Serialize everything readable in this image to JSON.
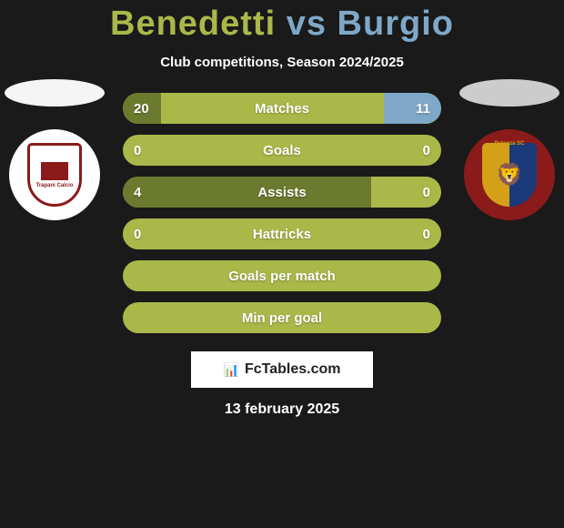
{
  "title": {
    "player1": "Benedetti",
    "vs": "vs",
    "player2": "Burgio"
  },
  "subtitle": "Club competitions, Season 2024/2025",
  "teams": {
    "left": {
      "name": "Trapani Calcio",
      "logo_bg": "#ffffff",
      "shield_color": "#8b1a1a"
    },
    "right": {
      "name": "Potenza SC",
      "logo_bg": "#8b1a1a",
      "shield_colors": [
        "#d4a017",
        "#1a3a7a"
      ]
    }
  },
  "stats": [
    {
      "label": "Matches",
      "left_value": "20",
      "right_value": "11",
      "left_pct": 12,
      "right_pct": 18,
      "show_values": true
    },
    {
      "label": "Goals",
      "left_value": "0",
      "right_value": "0",
      "left_pct": 0,
      "right_pct": 0,
      "show_values": true
    },
    {
      "label": "Assists",
      "left_value": "4",
      "right_value": "0",
      "left_pct": 78,
      "right_pct": 0,
      "show_values": true
    },
    {
      "label": "Hattricks",
      "left_value": "0",
      "right_value": "0",
      "left_pct": 0,
      "right_pct": 0,
      "show_values": true
    },
    {
      "label": "Goals per match",
      "left_value": "",
      "right_value": "",
      "left_pct": 0,
      "right_pct": 0,
      "show_values": false
    },
    {
      "label": "Min per goal",
      "left_value": "",
      "right_value": "",
      "left_pct": 0,
      "right_pct": 0,
      "show_values": false
    }
  ],
  "colors": {
    "bar_bg": "#aab84a",
    "fill_left": "#6b7a2e",
    "fill_right": "#7fa8c8",
    "player1": "#aab84a",
    "player2": "#7fa8c8"
  },
  "badge_text": "FcTables.com",
  "date": "13 february 2025"
}
